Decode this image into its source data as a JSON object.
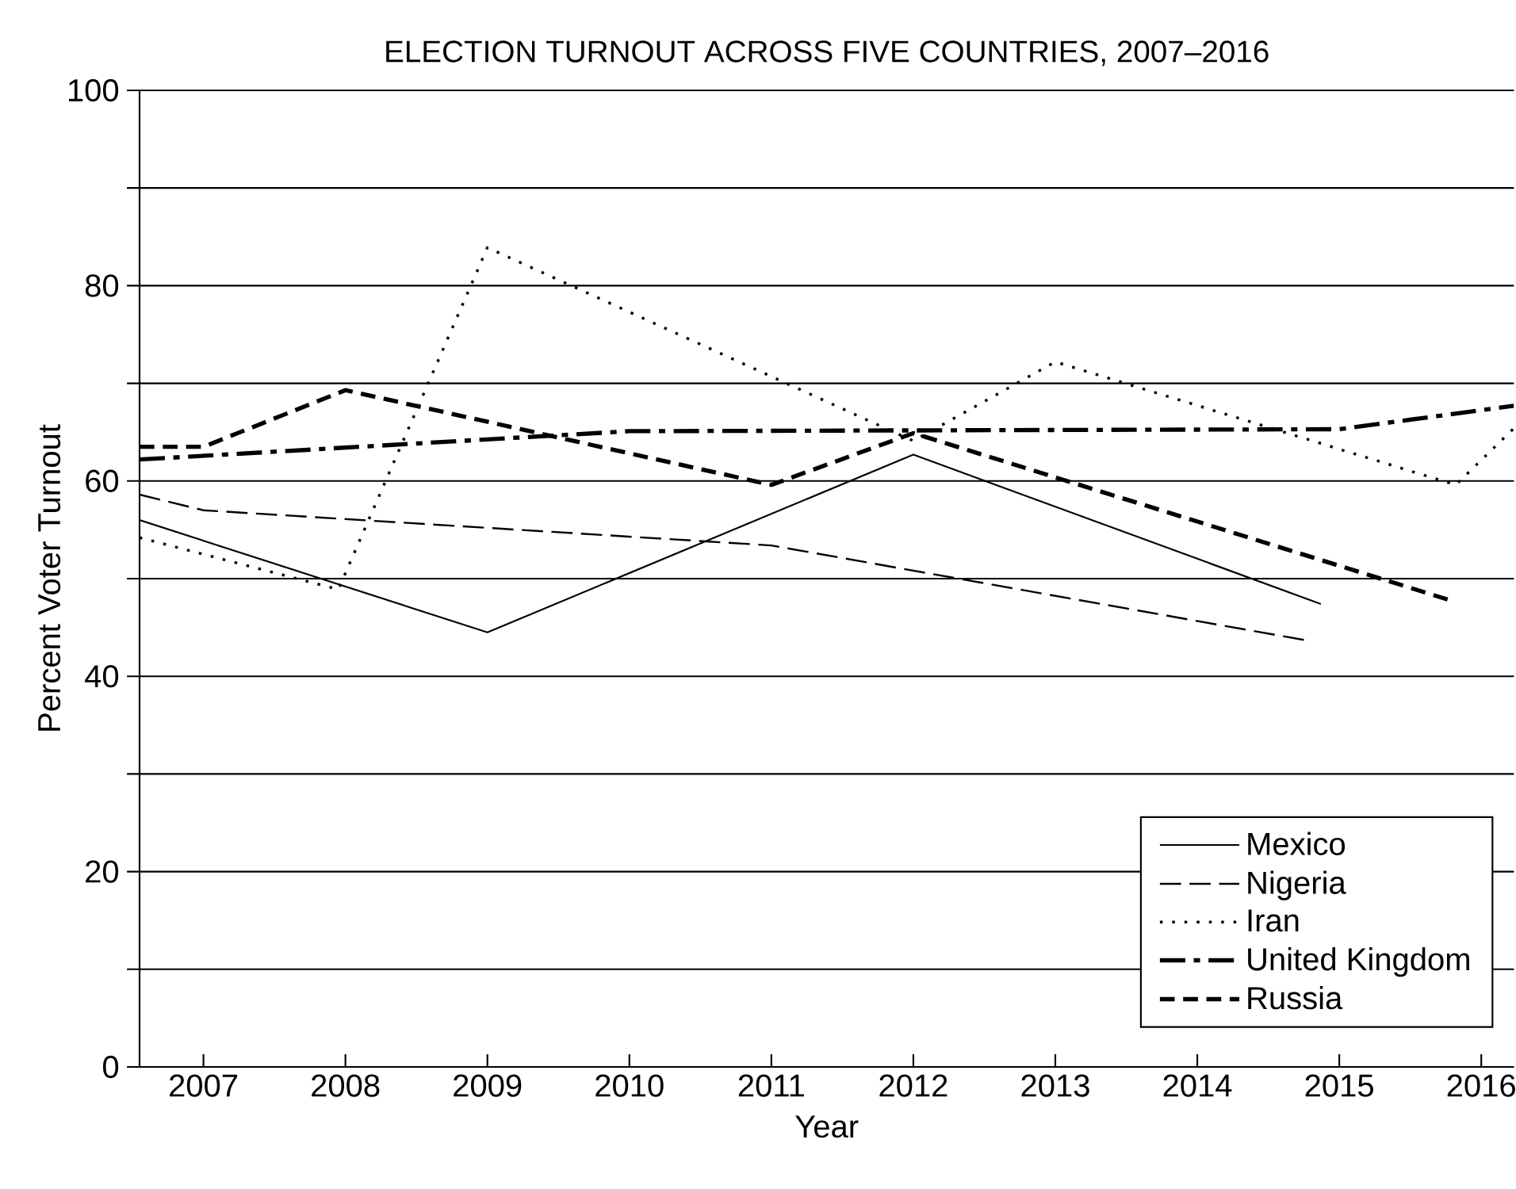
{
  "chart_data": {
    "type": "line",
    "title": "ELECTION TURNOUT ACROSS FIVE COUNTRIES, 2007–2016",
    "xlabel": "Year",
    "ylabel": "Percent Voter Turnout",
    "xlim": [
      2006.55,
      2016.23
    ],
    "xticks": [
      2007,
      2008,
      2009,
      2010,
      2011,
      2012,
      2013,
      2014,
      2015,
      2016
    ],
    "ylim": [
      0,
      100
    ],
    "yticks": [
      0,
      {
        "value": 10,
        "label": null
      },
      20,
      {
        "value": 30,
        "label": null
      },
      40,
      {
        "value": 50,
        "label": null
      },
      60,
      {
        "value": 70,
        "label": null
      },
      80,
      {
        "value": 90,
        "label": null
      },
      100
    ],
    "grid": "y",
    "legend": "bottom right",
    "marker": "none",
    "series": [
      {
        "name": "Mexico",
        "color": "#000000",
        "line_style": "solid",
        "x": [
          2006.55,
          2009,
          2012,
          2014.87
        ],
        "values": [
          56.0,
          44.5,
          62.7,
          47.4
        ]
      },
      {
        "name": "Nigeria",
        "color": "#000000",
        "line_style": "long dashed",
        "x": [
          2006.55,
          2007,
          2011,
          2014.76
        ],
        "values": [
          58.6,
          57.0,
          53.4,
          43.7
        ]
      },
      {
        "name": "Iran",
        "color": "#000000",
        "line_style": "dotted",
        "x": [
          2006.55,
          2007.95,
          2009,
          2012,
          2013,
          2015.82,
          2016.23
        ],
        "values": [
          54.2,
          48.9,
          83.9,
          64.1,
          72.2,
          59.6,
          65.4
        ]
      },
      {
        "name": "United Kingdom",
        "color": "#000000",
        "line_style": "dash-dot",
        "x": [
          2006.55,
          2010,
          2015,
          2016.23
        ],
        "values": [
          62.2,
          65.1,
          65.3,
          67.7
        ]
      },
      {
        "name": "Russia",
        "color": "#000000",
        "line_style": "dashed",
        "x": [
          2006.55,
          2007,
          2008,
          2011,
          2012,
          2015.8
        ],
        "values": [
          63.5,
          63.5,
          69.3,
          59.6,
          64.9,
          47.7
        ]
      }
    ]
  }
}
